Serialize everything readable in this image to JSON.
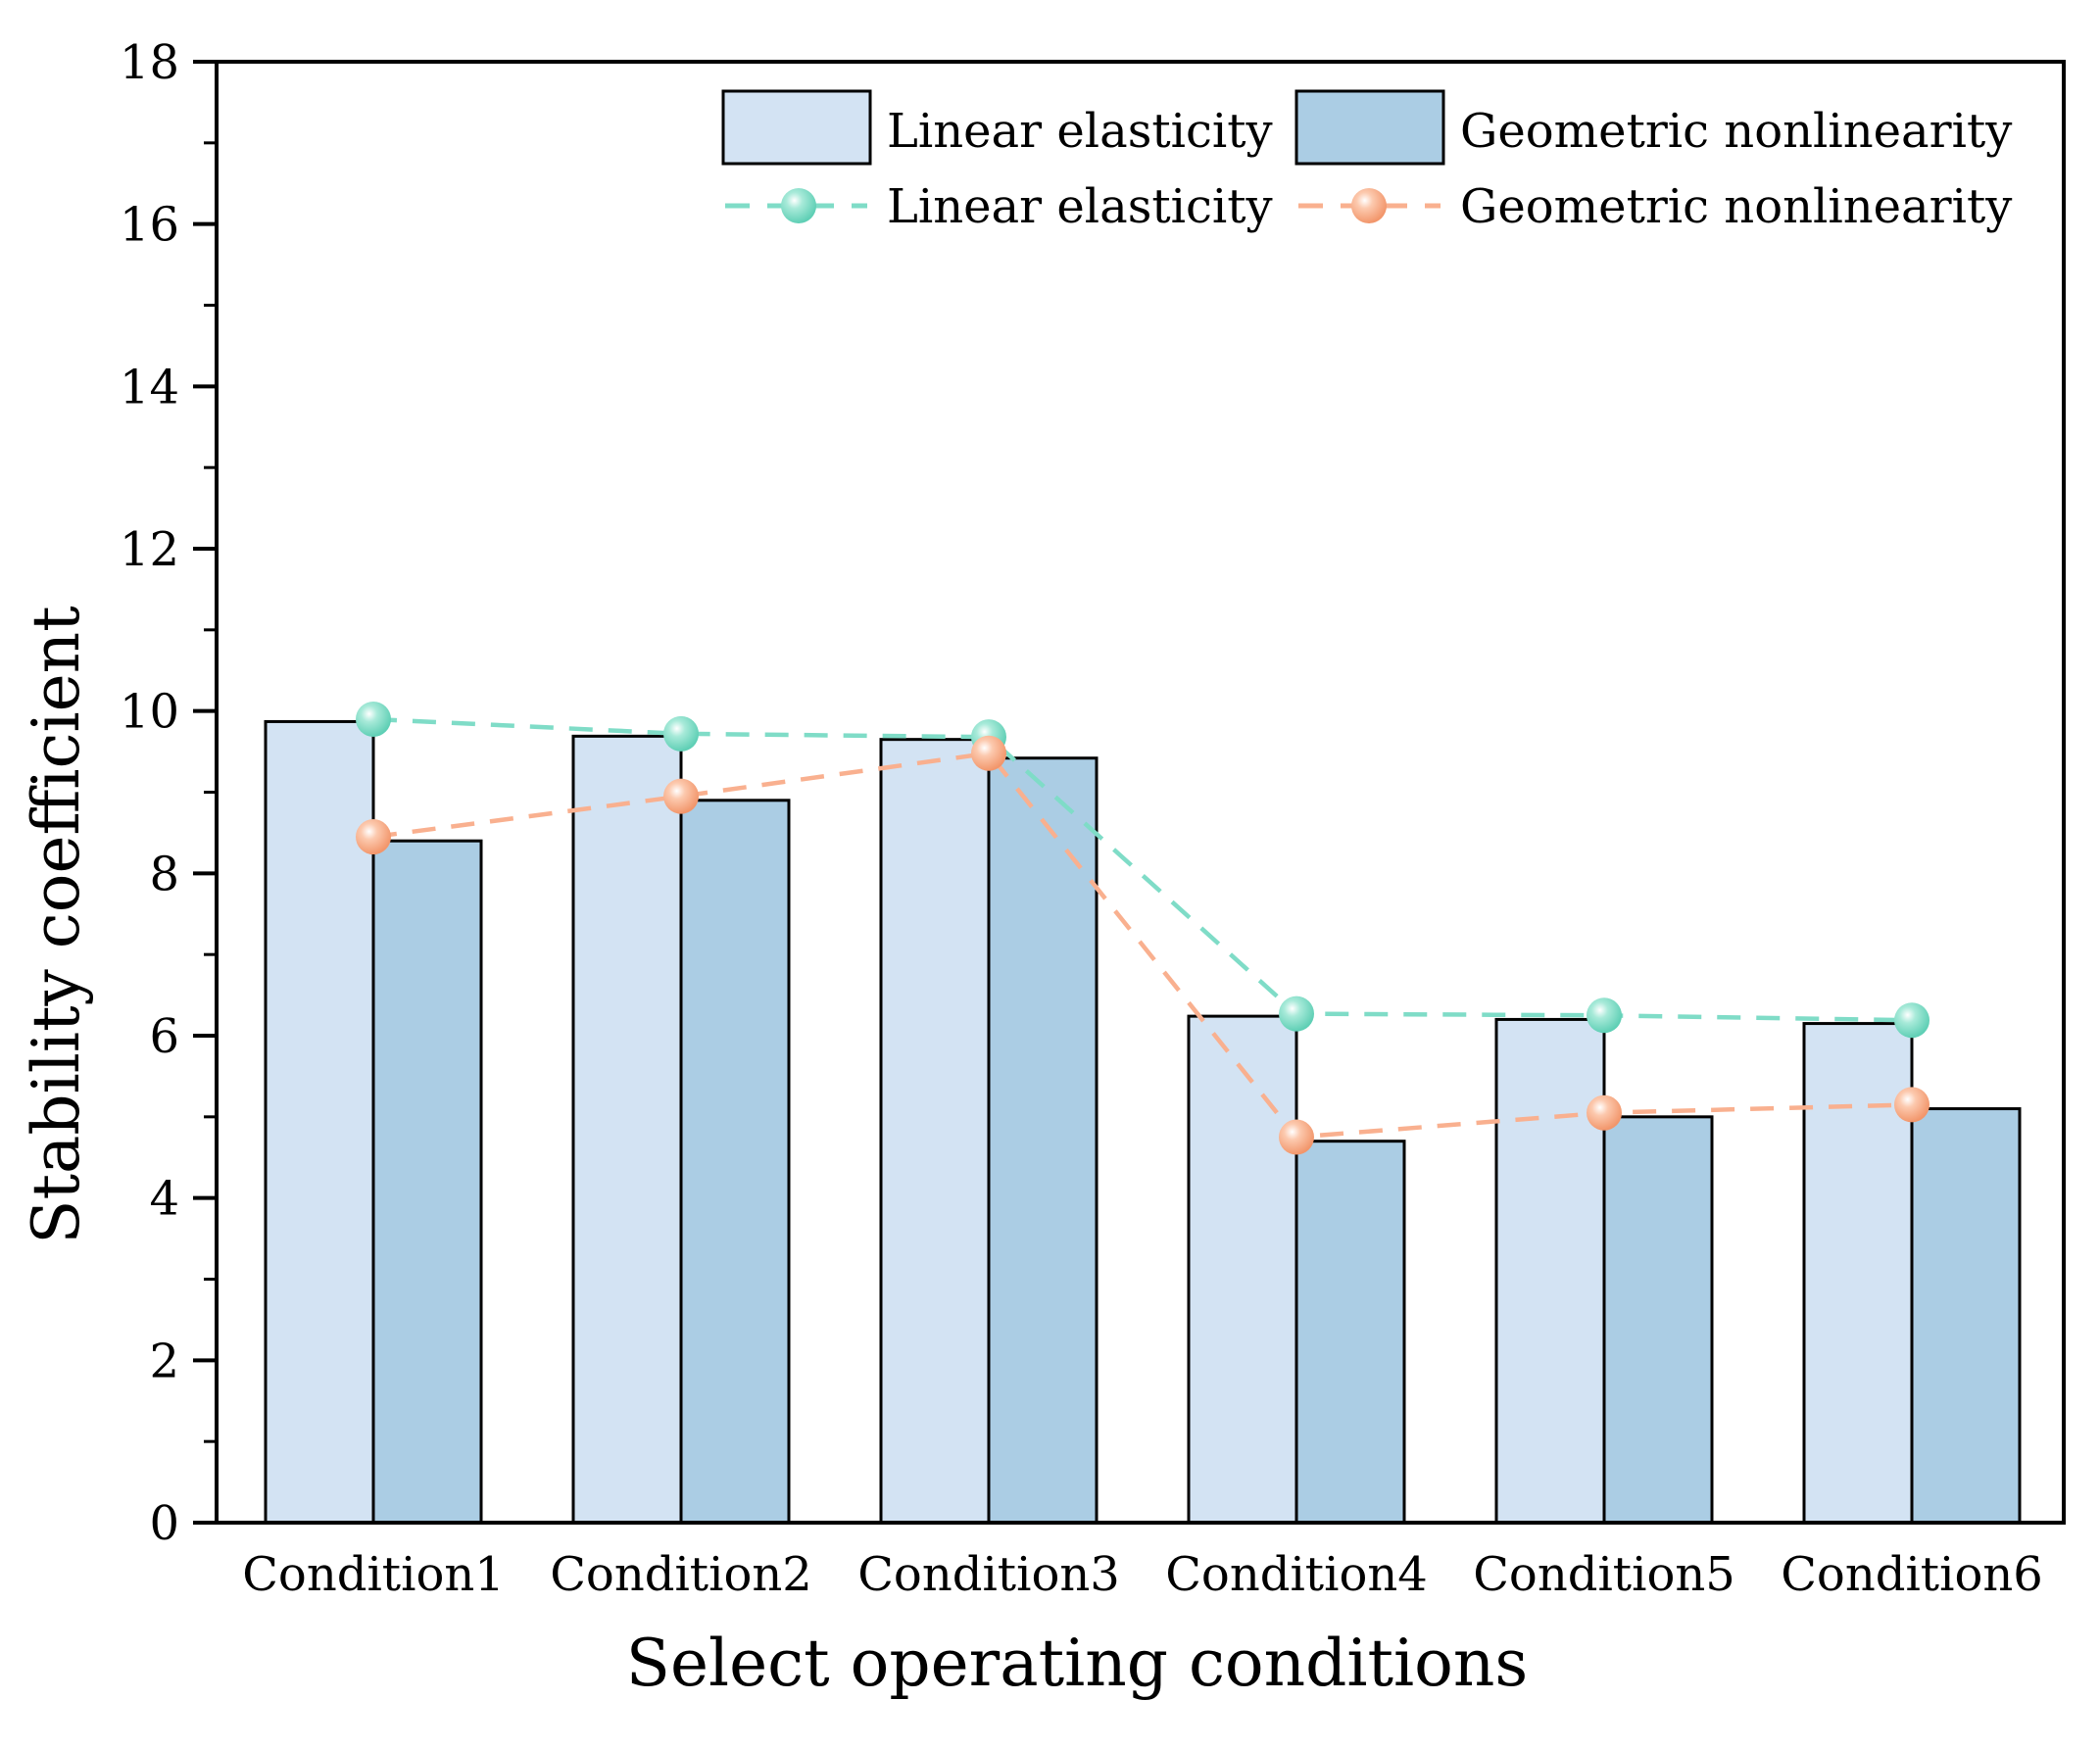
{
  "chart_data": {
    "type": "bar",
    "title": "",
    "xlabel": "Select operating conditions",
    "ylabel": "Stability coefficient",
    "ylim": [
      0,
      18
    ],
    "yticks": [
      0,
      2,
      4,
      6,
      8,
      10,
      12,
      14,
      16,
      18
    ],
    "categories": [
      "Condition1",
      "Condition2",
      "Condition3",
      "Condition4",
      "Condition5",
      "Condition6"
    ],
    "series": [
      {
        "name": "Linear elasticity",
        "kind": "bar",
        "color": "#d3e3f3",
        "values": [
          9.87,
          9.69,
          9.65,
          6.24,
          6.2,
          6.15
        ]
      },
      {
        "name": "Geometric nonlinearity",
        "kind": "bar",
        "color": "#abcde4",
        "values": [
          8.4,
          8.9,
          9.42,
          4.7,
          5.0,
          5.1
        ]
      },
      {
        "name": "Linear elasticity",
        "kind": "line",
        "color": "#7fdcc7",
        "values": [
          9.9,
          9.72,
          9.68,
          6.27,
          6.25,
          6.19
        ]
      },
      {
        "name": "Geometric nonlinearity",
        "kind": "line",
        "color": "#f9b08f",
        "values": [
          8.45,
          8.95,
          9.48,
          4.75,
          5.05,
          5.15
        ]
      }
    ],
    "legend_position": "top-right",
    "grid": false
  }
}
